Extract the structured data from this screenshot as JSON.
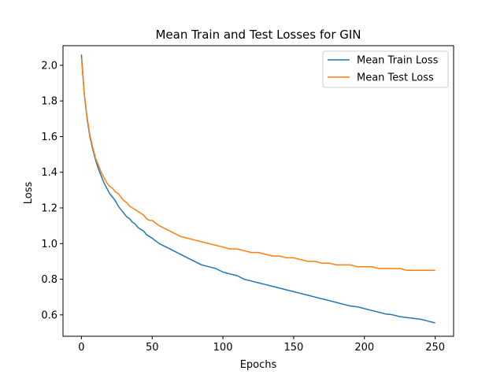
{
  "chart_data": {
    "type": "line",
    "title": "Mean Train and Test Losses for GIN",
    "xlabel": "Epochs",
    "ylabel": "Loss",
    "xlim": [
      -13,
      263
    ],
    "ylim": [
      0.48,
      2.11
    ],
    "xticks": [
      0,
      50,
      100,
      150,
      200,
      250
    ],
    "yticks": [
      0.6,
      0.8,
      1.0,
      1.2,
      1.4,
      1.6,
      1.8,
      2.0
    ],
    "ytick_labels": [
      "0.6",
      "0.8",
      "1.0",
      "1.2",
      "1.4",
      "1.6",
      "1.8",
      "2.0"
    ],
    "grid": false,
    "legend_position": "top-right",
    "series": [
      {
        "name": "Mean Train Loss",
        "color": "#1f77b4",
        "x": [
          0,
          2,
          4,
          6,
          8,
          10,
          12,
          14,
          16,
          18,
          20,
          22,
          24,
          26,
          28,
          30,
          32,
          34,
          36,
          38,
          40,
          42,
          44,
          46,
          48,
          50,
          55,
          60,
          65,
          70,
          75,
          80,
          85,
          90,
          95,
          100,
          105,
          110,
          115,
          120,
          125,
          130,
          135,
          140,
          145,
          150,
          155,
          160,
          165,
          170,
          175,
          180,
          185,
          190,
          195,
          200,
          205,
          210,
          215,
          220,
          225,
          230,
          235,
          240,
          245,
          250
        ],
        "values": [
          2.06,
          1.84,
          1.7,
          1.6,
          1.53,
          1.47,
          1.42,
          1.38,
          1.34,
          1.31,
          1.28,
          1.26,
          1.24,
          1.21,
          1.19,
          1.17,
          1.15,
          1.14,
          1.12,
          1.11,
          1.09,
          1.08,
          1.07,
          1.05,
          1.04,
          1.03,
          1.0,
          0.98,
          0.96,
          0.94,
          0.92,
          0.9,
          0.88,
          0.87,
          0.86,
          0.84,
          0.83,
          0.82,
          0.8,
          0.79,
          0.78,
          0.77,
          0.76,
          0.75,
          0.74,
          0.73,
          0.72,
          0.71,
          0.7,
          0.69,
          0.68,
          0.67,
          0.66,
          0.65,
          0.645,
          0.635,
          0.625,
          0.615,
          0.605,
          0.6,
          0.59,
          0.585,
          0.58,
          0.575,
          0.565,
          0.555
        ]
      },
      {
        "name": "Mean Test Loss",
        "color": "#ff7f0e",
        "x": [
          0,
          2,
          4,
          6,
          8,
          10,
          12,
          14,
          16,
          18,
          20,
          22,
          24,
          26,
          28,
          30,
          32,
          34,
          36,
          38,
          40,
          42,
          44,
          46,
          48,
          50,
          55,
          60,
          65,
          70,
          75,
          80,
          85,
          90,
          95,
          100,
          105,
          110,
          115,
          120,
          125,
          130,
          135,
          140,
          145,
          150,
          155,
          160,
          165,
          170,
          175,
          180,
          185,
          190,
          195,
          200,
          205,
          210,
          215,
          220,
          225,
          230,
          235,
          240,
          245,
          250
        ],
        "values": [
          2.04,
          1.84,
          1.71,
          1.61,
          1.54,
          1.48,
          1.44,
          1.4,
          1.37,
          1.34,
          1.32,
          1.31,
          1.29,
          1.28,
          1.26,
          1.24,
          1.23,
          1.21,
          1.2,
          1.19,
          1.18,
          1.17,
          1.16,
          1.14,
          1.13,
          1.13,
          1.1,
          1.08,
          1.06,
          1.04,
          1.03,
          1.02,
          1.01,
          1.0,
          0.99,
          0.98,
          0.97,
          0.97,
          0.96,
          0.95,
          0.95,
          0.94,
          0.93,
          0.93,
          0.92,
          0.92,
          0.91,
          0.9,
          0.9,
          0.89,
          0.89,
          0.88,
          0.88,
          0.88,
          0.87,
          0.87,
          0.87,
          0.86,
          0.86,
          0.86,
          0.86,
          0.85,
          0.85,
          0.85,
          0.85,
          0.85
        ]
      }
    ]
  }
}
